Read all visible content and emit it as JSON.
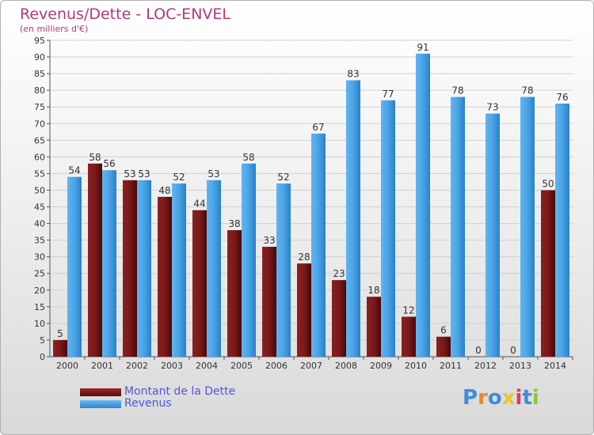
{
  "title": "Revenus/Dette - LOC-ENVEL",
  "subtitle": "(en milliers d'€)",
  "colors": {
    "title": "#b03a78",
    "dette": "#7a1a1a",
    "revenus": "#4aa3e6",
    "legend_text": "#5555dd"
  },
  "chart_data": {
    "type": "bar",
    "categories": [
      "2000",
      "2001",
      "2002",
      "2003",
      "2004",
      "2005",
      "2006",
      "2007",
      "2008",
      "2009",
      "2010",
      "2011",
      "2012",
      "2013",
      "2014"
    ],
    "series": [
      {
        "name": "Montant de la Dette",
        "values": [
          5,
          58,
          53,
          48,
          44,
          38,
          33,
          28,
          23,
          18,
          12,
          6,
          0,
          0,
          50
        ]
      },
      {
        "name": "Revenus",
        "values": [
          54,
          56,
          53,
          52,
          53,
          58,
          52,
          67,
          83,
          77,
          91,
          78,
          73,
          78,
          76
        ]
      }
    ],
    "ylim": [
      0,
      95
    ],
    "yticks": [
      0,
      5,
      10,
      15,
      20,
      25,
      30,
      35,
      40,
      45,
      50,
      55,
      60,
      65,
      70,
      75,
      80,
      85,
      90,
      95
    ],
    "grid": true,
    "legend": "bottom-left"
  },
  "legend": {
    "dette_label": "Montant de la Dette",
    "revenus_label": "Revenus"
  },
  "logo": "Proxiti"
}
